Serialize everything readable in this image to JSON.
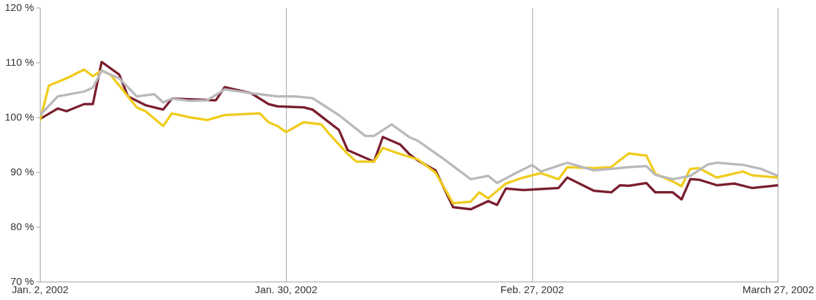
{
  "chart_data": {
    "type": "line",
    "xlim": [
      "2002-01-02",
      "2002-03-27"
    ],
    "xticks": [
      {
        "value": "2002-01-02",
        "label": "Jan. 2, 2002"
      },
      {
        "value": "2002-01-30",
        "label": "Jan. 30, 2002"
      },
      {
        "value": "2002-02-27",
        "label": "Feb. 27, 2002"
      },
      {
        "value": "2002-03-27",
        "label": "March 27, 2002"
      }
    ],
    "ylim": [
      70,
      120
    ],
    "yticks": [
      {
        "value": 70,
        "label": "70 %"
      },
      {
        "value": 80,
        "label": "80 %"
      },
      {
        "value": 90,
        "label": "90 %"
      },
      {
        "value": 100,
        "label": "100 %"
      },
      {
        "value": 110,
        "label": "110 %"
      },
      {
        "value": 120,
        "label": "120 %"
      }
    ],
    "grid": "x",
    "legend": false,
    "marker": "none",
    "line_style": "solid",
    "series": [
      {
        "color": "#b9b9bd",
        "x": [
          "2002-01-02",
          "2002-01-04",
          "2002-01-07",
          "2002-01-08",
          "2002-01-09",
          "2002-01-11",
          "2002-01-13",
          "2002-01-15",
          "2002-01-16",
          "2002-01-17",
          "2002-01-19",
          "2002-01-21",
          "2002-01-23",
          "2002-01-26",
          "2002-01-29",
          "2002-01-31",
          "2002-02-02",
          "2002-02-05",
          "2002-02-08",
          "2002-02-09",
          "2002-02-11",
          "2002-02-13",
          "2002-02-14",
          "2002-02-17",
          "2002-02-20",
          "2002-02-22",
          "2002-02-23",
          "2002-02-25",
          "2002-02-27",
          "2002-02-28",
          "2002-03-03",
          "2002-03-06",
          "2002-03-08",
          "2002-03-10",
          "2002-03-12",
          "2002-03-13",
          "2002-03-15",
          "2002-03-17",
          "2002-03-19",
          "2002-03-20",
          "2002-03-23",
          "2002-03-25",
          "2002-03-27"
        ],
        "values": [
          100.5,
          103.9,
          104.8,
          105.5,
          108.6,
          107.2,
          103.9,
          104.3,
          102.8,
          103.5,
          103.1,
          103.2,
          105.2,
          104.5,
          103.9,
          103.9,
          103.6,
          100.5,
          96.7,
          96.7,
          98.8,
          96.5,
          95.8,
          92.4,
          88.8,
          89.4,
          88.1,
          89.8,
          91.4,
          90.2,
          91.8,
          90.4,
          90.7,
          91.0,
          91.2,
          89.6,
          88.8,
          89.4,
          91.5,
          91.8,
          91.4,
          90.7,
          89.4
        ]
      },
      {
        "color": "#f0cc1e",
        "x": [
          "2002-01-02",
          "2002-01-03",
          "2002-01-05",
          "2002-01-07",
          "2002-01-08",
          "2002-01-09",
          "2002-01-10",
          "2002-01-12",
          "2002-01-13",
          "2002-01-14",
          "2002-01-16",
          "2002-01-17",
          "2002-01-19",
          "2002-01-21",
          "2002-01-23",
          "2002-01-27",
          "2002-01-28",
          "2002-01-29",
          "2002-01-30",
          "2002-02-01",
          "2002-02-03",
          "2002-02-04",
          "2002-02-06",
          "2002-02-07",
          "2002-02-09",
          "2002-02-10",
          "2002-02-12",
          "2002-02-14",
          "2002-02-16",
          "2002-02-18",
          "2002-02-20",
          "2002-02-21",
          "2002-02-22",
          "2002-02-24",
          "2002-02-26",
          "2002-02-28",
          "2002-03-02",
          "2002-03-03",
          "2002-03-06",
          "2002-03-08",
          "2002-03-09",
          "2002-03-10",
          "2002-03-12",
          "2002-03-13",
          "2002-03-15",
          "2002-03-16",
          "2002-03-17",
          "2002-03-18",
          "2002-03-20",
          "2002-03-23",
          "2002-03-24",
          "2002-03-27"
        ],
        "values": [
          99.6,
          105.9,
          107.2,
          108.8,
          107.6,
          108.6,
          107.9,
          103.9,
          101.9,
          101.2,
          98.5,
          100.8,
          100.1,
          99.6,
          100.5,
          100.8,
          99.2,
          98.5,
          97.4,
          99.2,
          98.8,
          96.9,
          93.4,
          92.0,
          92.0,
          94.5,
          93.4,
          92.4,
          90.0,
          84.4,
          84.7,
          86.4,
          85.3,
          88.0,
          89.1,
          89.9,
          88.8,
          91.0,
          90.8,
          91.0,
          92.3,
          93.5,
          93.1,
          89.8,
          88.4,
          87.5,
          90.7,
          90.8,
          89.1,
          90.2,
          89.5,
          89.1
        ]
      },
      {
        "color": "#7a1f2e",
        "x": [
          "2002-01-02",
          "2002-01-04",
          "2002-01-05",
          "2002-01-07",
          "2002-01-08",
          "2002-01-09",
          "2002-01-11",
          "2002-01-12",
          "2002-01-14",
          "2002-01-16",
          "2002-01-17",
          "2002-01-22",
          "2002-01-23",
          "2002-01-26",
          "2002-01-28",
          "2002-01-29",
          "2002-02-01",
          "2002-02-02",
          "2002-02-05",
          "2002-02-06",
          "2002-02-09",
          "2002-02-10",
          "2002-02-12",
          "2002-02-13",
          "2002-02-14",
          "2002-02-16",
          "2002-02-18",
          "2002-02-20",
          "2002-02-22",
          "2002-02-23",
          "2002-02-24",
          "2002-02-26",
          "2002-03-02",
          "2002-03-03",
          "2002-03-06",
          "2002-03-08",
          "2002-03-09",
          "2002-03-10",
          "2002-03-12",
          "2002-03-13",
          "2002-03-15",
          "2002-03-16",
          "2002-03-17",
          "2002-03-18",
          "2002-03-20",
          "2002-03-22",
          "2002-03-24",
          "2002-03-27"
        ],
        "values": [
          99.8,
          101.7,
          101.2,
          102.5,
          102.5,
          110.2,
          107.9,
          103.9,
          102.3,
          101.5,
          103.5,
          103.2,
          105.6,
          104.5,
          102.5,
          102.1,
          101.9,
          101.5,
          97.8,
          94.1,
          92.0,
          96.5,
          95.1,
          93.4,
          92.2,
          90.4,
          83.7,
          83.3,
          84.8,
          84.1,
          87.1,
          86.8,
          87.2,
          89.1,
          86.7,
          86.4,
          87.7,
          87.6,
          88.1,
          86.4,
          86.4,
          85.1,
          88.8,
          88.7,
          87.7,
          88.0,
          87.2,
          87.7
        ]
      }
    ]
  }
}
